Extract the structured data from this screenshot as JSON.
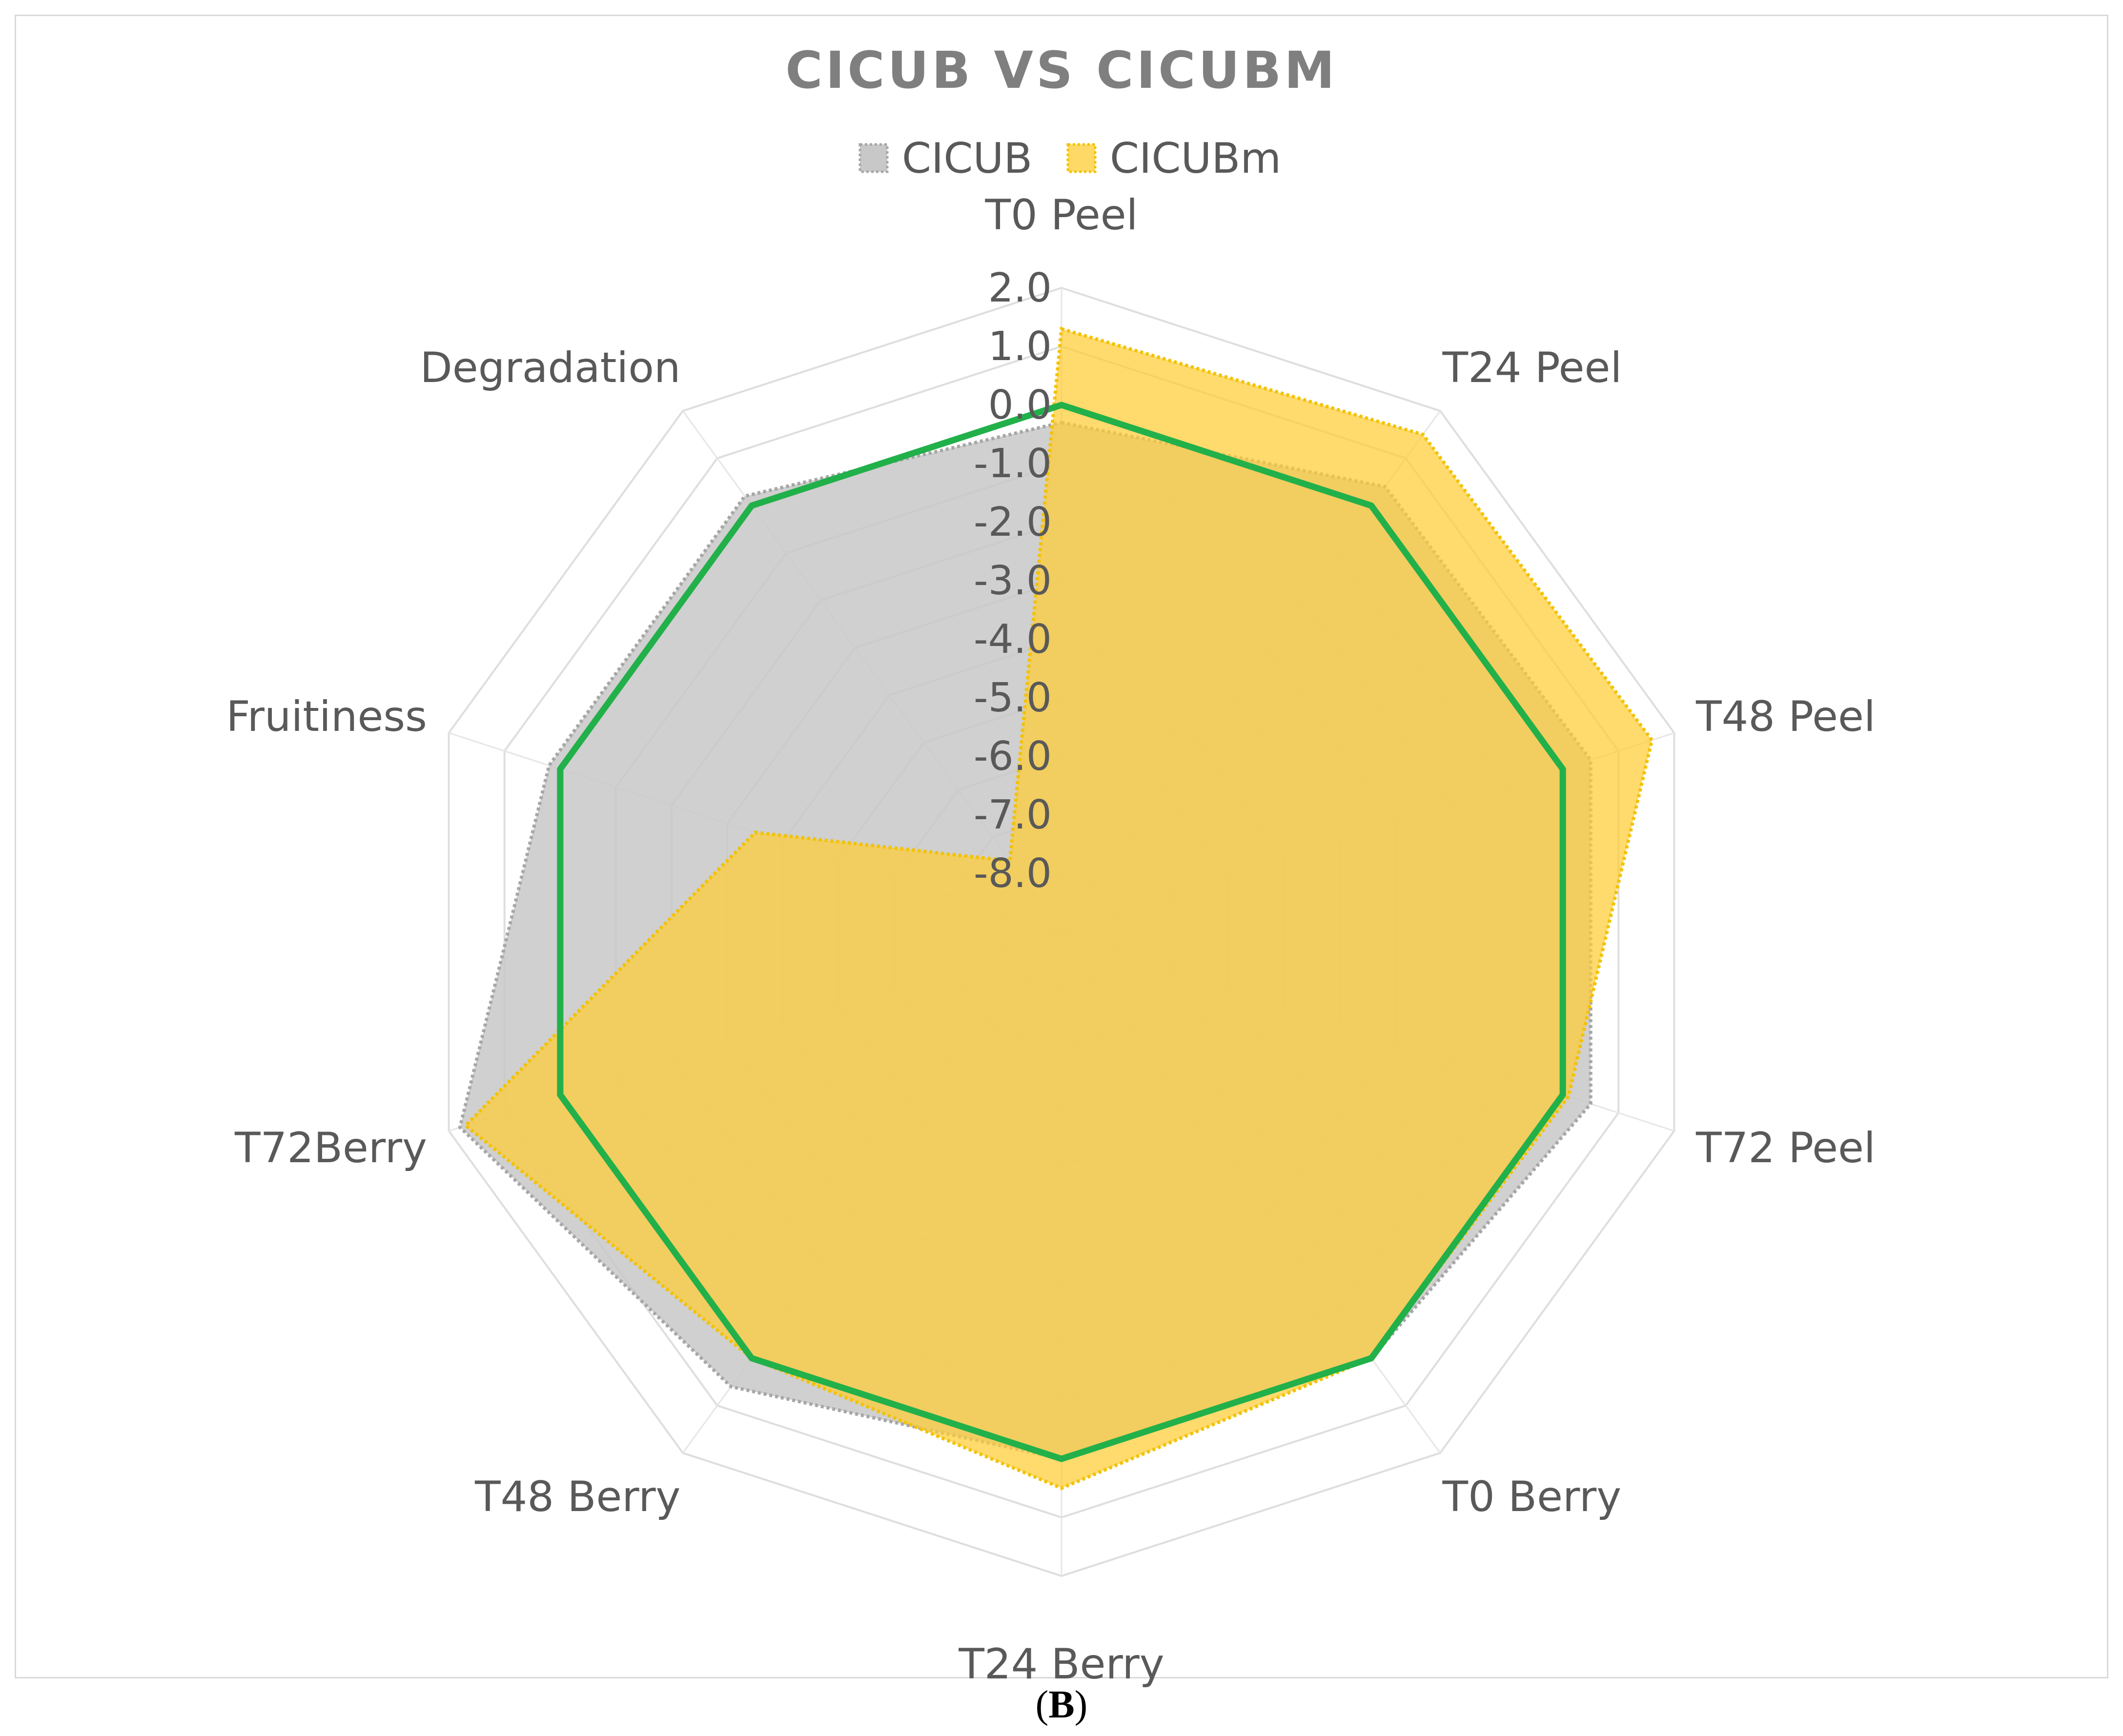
{
  "chart_data": {
    "type": "radar",
    "title": "CICUB VS CICUBM",
    "panel_label": "B",
    "categories": [
      "T0 Peel",
      "T24 Peel",
      "T48 Peel",
      "T72 Peel",
      "T0 Berry",
      "T24 Berry",
      "T48 Berry",
      "T72Berry",
      "Fruitiness",
      "Degradation"
    ],
    "radial_ticks": [
      "2.0",
      "1.0",
      "0.0",
      "-1.0",
      "-2.0",
      "-3.0",
      "-4.0",
      "-5.0",
      "-6.0",
      "-7.0",
      "-8.0"
    ],
    "rlim": [
      -9,
      2
    ],
    "series": [
      {
        "name": "CICUB",
        "values": [
          -0.3,
          0.4,
          0.5,
          0.5,
          0.0,
          0.0,
          0.6,
          1.8,
          0.2,
          0.2
        ],
        "fill": "#c8c8c8",
        "stroke": "#a6a6a6",
        "style": "dotted-area"
      },
      {
        "name": "CICUBm",
        "values": [
          1.3,
          1.5,
          1.6,
          0.1,
          0.0,
          0.5,
          0.0,
          1.7,
          -3.5,
          -7.5
        ],
        "fill": "#ffcc33",
        "stroke": "#f2c200",
        "style": "dotted-area"
      },
      {
        "name": "",
        "values": [
          0.0,
          0.0,
          0.0,
          0.0,
          0.0,
          0.0,
          0.0,
          0.0,
          0.0,
          0.0
        ],
        "stroke": "#22b04a",
        "style": "line"
      }
    ],
    "grid": true,
    "legend_position": "top"
  }
}
